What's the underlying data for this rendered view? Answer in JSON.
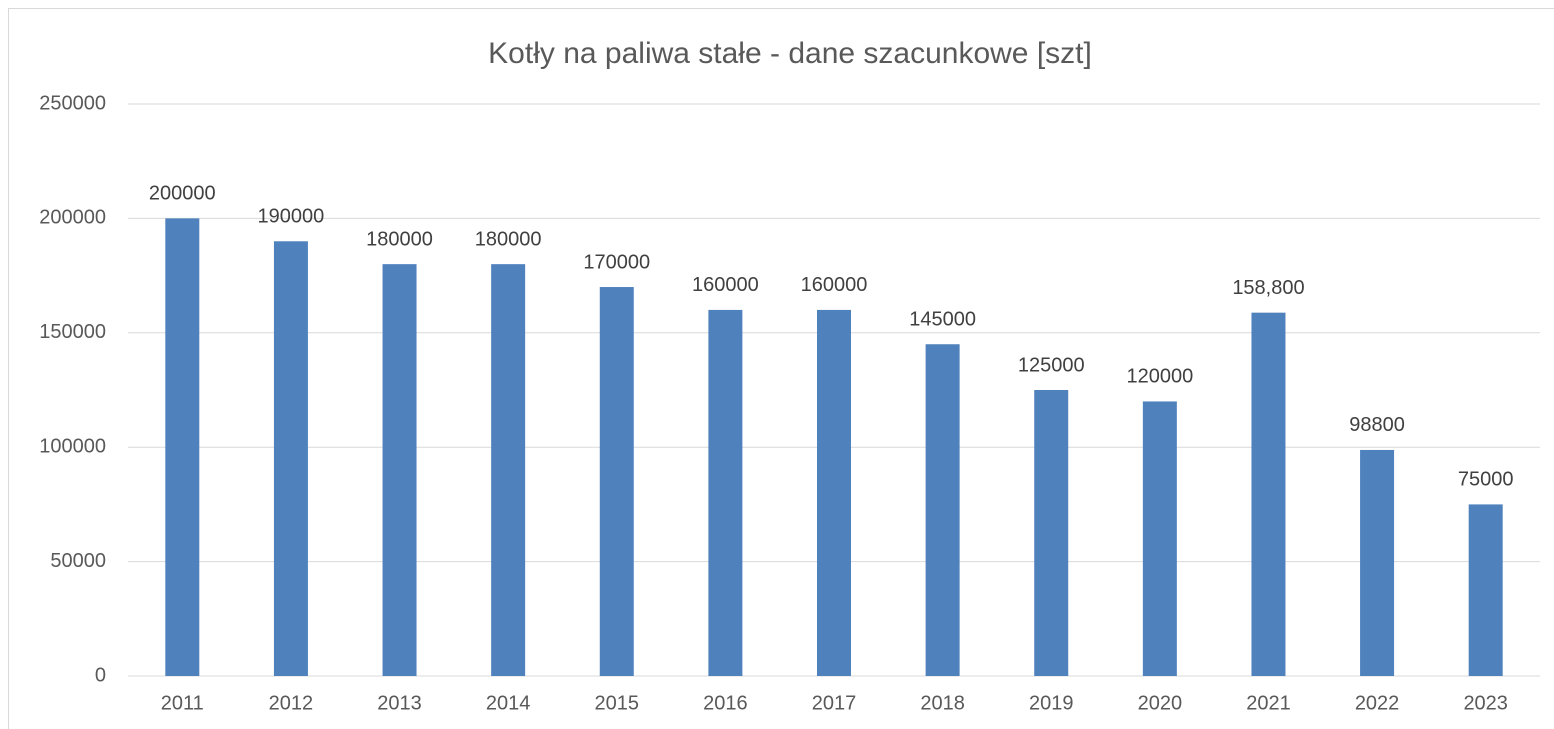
{
  "chart_data": {
    "type": "bar",
    "title": "Kotły na paliwa stałe - dane szacunkowe [szt]",
    "categories": [
      "2011",
      "2012",
      "2013",
      "2014",
      "2015",
      "2016",
      "2017",
      "2018",
      "2019",
      "2020",
      "2021",
      "2022",
      "2023"
    ],
    "values": [
      200000,
      190000,
      180000,
      180000,
      170000,
      160000,
      160000,
      145000,
      125000,
      120000,
      158800,
      98800,
      75000
    ],
    "value_labels": [
      "200000",
      "190000",
      "180000",
      "180000",
      "170000",
      "160000",
      "160000",
      "145000",
      "125000",
      "120000",
      "158,800",
      "98800",
      "75000"
    ],
    "color": "#4f81bd",
    "ylim": [
      0,
      250000
    ],
    "yticks": [
      0,
      50000,
      100000,
      150000,
      200000,
      250000
    ],
    "grid": true
  }
}
